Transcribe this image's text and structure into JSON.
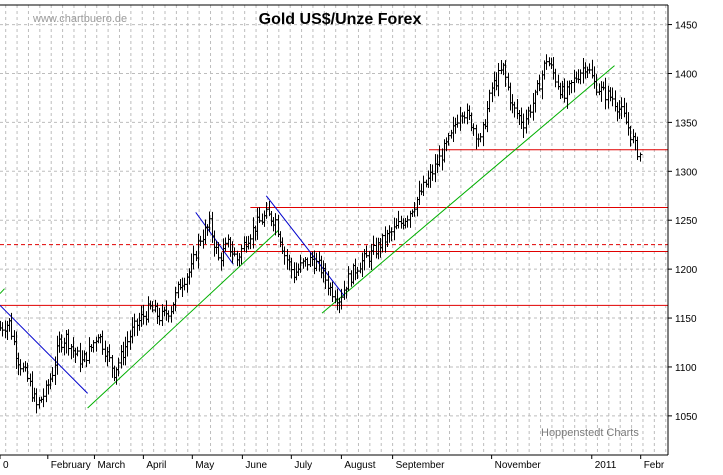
{
  "chart_data": {
    "type": "ohlc",
    "title": "Gold US$/Unze Forex",
    "watermark": "www.chartbuero.de",
    "credit": "Hoppenstedt Charts",
    "ylim": [
      1010,
      1470
    ],
    "yticks": [
      1050,
      1100,
      1150,
      1200,
      1250,
      1300,
      1350,
      1400,
      1450
    ],
    "grid": true,
    "x_axis": {
      "months": [
        {
          "label": "0",
          "t": 0
        },
        {
          "label": "February",
          "t": 4.2
        },
        {
          "label": "March",
          "t": 8.3
        },
        {
          "label": "April",
          "t": 12.6
        },
        {
          "label": "May",
          "t": 16.9
        },
        {
          "label": "June",
          "t": 21.3
        },
        {
          "label": "July",
          "t": 25.6
        },
        {
          "label": "August",
          "t": 30.0
        },
        {
          "label": "September",
          "t": 34.5
        },
        {
          "label": "November",
          "t": 43.2
        },
        {
          "label": "2011",
          "t": 52.0
        },
        {
          "label": "Febr",
          "t": 56.3
        }
      ],
      "tmax": 58.7
    },
    "price_path": [
      [
        0,
        1140
      ],
      [
        0.8,
        1145
      ],
      [
        1.5,
        1110
      ],
      [
        2.5,
        1085
      ],
      [
        3.2,
        1060
      ],
      [
        4.0,
        1075
      ],
      [
        4.6,
        1095
      ],
      [
        5.2,
        1125
      ],
      [
        5.8,
        1130
      ],
      [
        6.5,
        1115
      ],
      [
        7.2,
        1105
      ],
      [
        8.0,
        1120
      ],
      [
        8.6,
        1135
      ],
      [
        9.3,
        1115
      ],
      [
        10.0,
        1095
      ],
      [
        10.8,
        1115
      ],
      [
        11.5,
        1135
      ],
      [
        12.4,
        1150
      ],
      [
        13.2,
        1160
      ],
      [
        14.1,
        1150
      ],
      [
        15.0,
        1160
      ],
      [
        15.8,
        1185
      ],
      [
        16.8,
        1200
      ],
      [
        17.5,
        1230
      ],
      [
        18.4,
        1245
      ],
      [
        19.2,
        1210
      ],
      [
        20.0,
        1225
      ],
      [
        20.8,
        1210
      ],
      [
        21.6,
        1230
      ],
      [
        22.5,
        1245
      ],
      [
        23.4,
        1255
      ],
      [
        24.2,
        1250
      ],
      [
        25.0,
        1215
      ],
      [
        25.8,
        1195
      ],
      [
        26.6,
        1205
      ],
      [
        27.4,
        1210
      ],
      [
        28.2,
        1200
      ],
      [
        29.0,
        1180
      ],
      [
        29.8,
        1170
      ],
      [
        30.6,
        1190
      ],
      [
        31.5,
        1205
      ],
      [
        32.6,
        1215
      ],
      [
        33.6,
        1228
      ],
      [
        34.8,
        1242
      ],
      [
        35.8,
        1255
      ],
      [
        36.8,
        1275
      ],
      [
        37.8,
        1295
      ],
      [
        38.7,
        1315
      ],
      [
        39.6,
        1335
      ],
      [
        40.5,
        1365
      ],
      [
        41.4,
        1350
      ],
      [
        42.2,
        1330
      ],
      [
        43.2,
        1385
      ],
      [
        44.2,
        1405
      ],
      [
        45.0,
        1365
      ],
      [
        46.0,
        1350
      ],
      [
        47.0,
        1375
      ],
      [
        48.0,
        1415
      ],
      [
        48.8,
        1395
      ],
      [
        49.6,
        1375
      ],
      [
        50.5,
        1395
      ],
      [
        51.5,
        1410
      ],
      [
        52.2,
        1390
      ],
      [
        53.0,
        1380
      ],
      [
        53.8,
        1375
      ],
      [
        54.6,
        1360
      ],
      [
        55.2,
        1345
      ],
      [
        55.8,
        1325
      ],
      [
        56.3,
        1315
      ]
    ],
    "horizontal_lines": [
      {
        "y": 1163,
        "color": "#e00000",
        "style": "solid",
        "t0": 0,
        "t1": 58.7
      },
      {
        "y": 1218,
        "color": "#e00000",
        "style": "solid",
        "t0": 19.5,
        "t1": 58.7
      },
      {
        "y": 1225,
        "color": "#e00000",
        "style": "dashed",
        "t0": 0,
        "t1": 58.7
      },
      {
        "y": 1263,
        "color": "#e00000",
        "style": "solid",
        "t0": 22.0,
        "t1": 58.7
      },
      {
        "y": 1322,
        "color": "#e00000",
        "style": "solid",
        "t0": 37.7,
        "t1": 58.7
      }
    ],
    "trend_lines": [
      {
        "t0": 0,
        "y0": 1175,
        "t1": 0.4,
        "y1": 1180,
        "color": "#00b000"
      },
      {
        "t0": 7.7,
        "y0": 1058,
        "t1": 24.5,
        "y1": 1240,
        "color": "#00b000"
      },
      {
        "t0": 28.3,
        "y0": 1155,
        "t1": 54.0,
        "y1": 1408,
        "color": "#00b000"
      },
      {
        "t0": 0,
        "y0": 1163,
        "t1": 7.7,
        "y1": 1073,
        "color": "#0000cc"
      },
      {
        "t0": 17.2,
        "y0": 1258,
        "t1": 20.5,
        "y1": 1205,
        "color": "#0000cc"
      },
      {
        "t0": 23.4,
        "y0": 1275,
        "t1": 30.3,
        "y1": 1172,
        "color": "#0000cc"
      }
    ]
  }
}
